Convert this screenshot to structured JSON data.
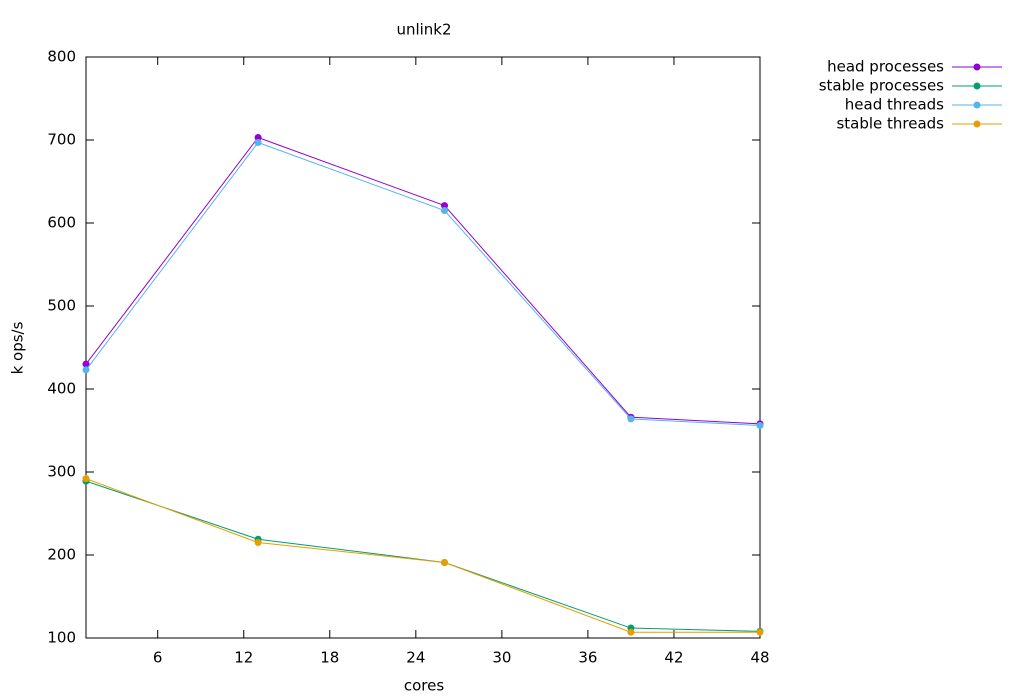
{
  "chart_data": {
    "type": "line",
    "title": "unlink2",
    "x_label": "cores",
    "y_label": "k ops/s",
    "x": [
      1,
      13,
      26,
      39,
      48
    ],
    "series": [
      {
        "name": "head processes",
        "color": "#9400d3",
        "values": [
          430,
          703,
          621,
          366,
          358
        ]
      },
      {
        "name": "stable processes",
        "color": "#009e73",
        "values": [
          289,
          219,
          191,
          112,
          108
        ]
      },
      {
        "name": "head threads",
        "color": "#56b4e9",
        "values": [
          423,
          697,
          615,
          364,
          356
        ]
      },
      {
        "name": "stable threads",
        "color": "#e69f00",
        "values": [
          292,
          215,
          191,
          107,
          107
        ]
      }
    ],
    "xlim": [
      1,
      48
    ],
    "xticks": [
      6,
      12,
      18,
      24,
      30,
      36,
      42,
      48
    ],
    "ylim": [
      100,
      800
    ],
    "yticks": [
      100,
      200,
      300,
      400,
      500,
      600,
      700,
      800
    ],
    "legend": "outside top right"
  }
}
